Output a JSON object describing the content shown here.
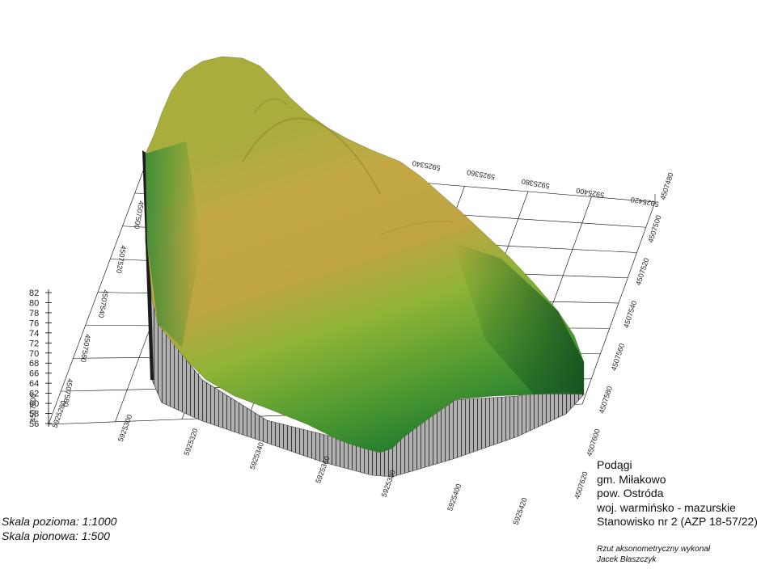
{
  "model": {
    "axis_x_ticks": [
      "5925280",
      "5925300",
      "5925320",
      "5925340",
      "5925360",
      "5925380",
      "5925400",
      "5925420"
    ],
    "axis_x_back_ticks": [
      "5925340",
      "5925360",
      "5925380",
      "5925400",
      "5925420"
    ],
    "axis_y_left_ticks": [
      "4507500",
      "4507520",
      "4507540",
      "4507560",
      "4507580"
    ],
    "axis_y_right_ticks": [
      "4507480",
      "4507500",
      "4507520",
      "4507540",
      "4507560",
      "4507580",
      "4507600",
      "4507620"
    ],
    "axis_z_ticks": [
      "82",
      "80",
      "78",
      "76",
      "74",
      "72",
      "70",
      "68",
      "66",
      "64",
      "62",
      "60",
      "58",
      "56"
    ],
    "corner_label": "4507600",
    "colors": {
      "low": "#1e7a2c",
      "mid": "#7fae2e",
      "high": "#c9a742",
      "wall": "#b2b2b2"
    }
  },
  "scale": {
    "horizontal": "Skala pozioma: 1:1000",
    "vertical": "Skala pionowa: 1:500"
  },
  "info": {
    "line1": "Podągi",
    "line2": "gm. Miłakowo",
    "line3": "pow. Ostróda",
    "line4": "woj. warmińsko - mazurskie",
    "line5": "Stanowisko nr 2 (AZP 18-57/22)"
  },
  "author": {
    "line1": "Rzut aksonometryczny wykonał",
    "line2": "Jacek Błaszczyk"
  }
}
